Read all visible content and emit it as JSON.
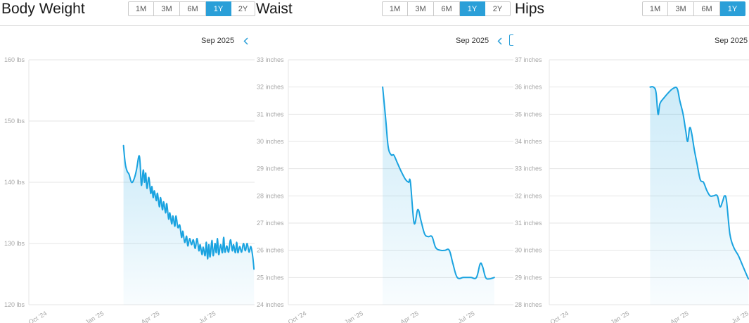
{
  "chart_data": [
    {
      "type": "area",
      "title": "Body Weight",
      "range_options": [
        "1M",
        "3M",
        "6M",
        "1Y",
        "2Y"
      ],
      "selected_range": "1Y",
      "month_label": "Sep 2025",
      "y_ticks": [
        {
          "value": 120,
          "label": "120 lbs"
        },
        {
          "value": 130,
          "label": "130 lbs"
        },
        {
          "value": 140,
          "label": "140 lbs"
        },
        {
          "value": 150,
          "label": "150 lbs"
        },
        {
          "value": 160,
          "label": "160 lbs"
        }
      ],
      "ylim": [
        120,
        160
      ],
      "x_ticks": [
        {
          "date": "2024-10-01",
          "label": "Oct '24"
        },
        {
          "date": "2025-01-01",
          "label": "Jan '25"
        },
        {
          "date": "2025-04-01",
          "label": "Apr '25"
        },
        {
          "date": "2025-07-01",
          "label": "Jul '25"
        }
      ],
      "xlim": [
        "2024-09-01",
        "2025-09-01"
      ],
      "series": [
        {
          "points": [
            [
              "2025-02-01",
              146.0
            ],
            [
              "2025-02-04",
              143.0
            ],
            [
              "2025-02-07",
              141.8
            ],
            [
              "2025-02-10",
              141.3
            ],
            [
              "2025-02-14",
              140.0
            ],
            [
              "2025-02-18",
              140.5
            ],
            [
              "2025-02-22",
              142.0
            ],
            [
              "2025-02-26",
              144.3
            ],
            [
              "2025-02-28",
              143.0
            ],
            [
              "2025-03-02",
              139.5
            ],
            [
              "2025-03-05",
              142.0
            ],
            [
              "2025-03-07",
              140.0
            ],
            [
              "2025-03-09",
              141.5
            ],
            [
              "2025-03-11",
              139.0
            ],
            [
              "2025-03-14",
              140.8
            ],
            [
              "2025-03-17",
              138.2
            ],
            [
              "2025-03-19",
              139.3
            ],
            [
              "2025-03-21",
              137.5
            ],
            [
              "2025-03-23",
              138.6
            ],
            [
              "2025-03-26",
              137.0
            ],
            [
              "2025-03-28",
              138.2
            ],
            [
              "2025-03-31",
              136.0
            ],
            [
              "2025-04-02",
              137.5
            ],
            [
              "2025-04-05",
              135.5
            ],
            [
              "2025-04-07",
              136.8
            ],
            [
              "2025-04-10",
              135.0
            ],
            [
              "2025-04-12",
              136.5
            ],
            [
              "2025-04-15",
              134.0
            ],
            [
              "2025-04-17",
              135.0
            ],
            [
              "2025-04-20",
              133.2
            ],
            [
              "2025-04-22",
              134.5
            ],
            [
              "2025-04-25",
              132.8
            ],
            [
              "2025-04-27",
              134.5
            ],
            [
              "2025-04-30",
              132.6
            ],
            [
              "2025-05-03",
              133.0
            ],
            [
              "2025-05-06",
              131.0
            ],
            [
              "2025-05-08",
              132.0
            ],
            [
              "2025-05-11",
              130.2
            ],
            [
              "2025-05-14",
              131.2
            ],
            [
              "2025-05-16",
              129.6
            ],
            [
              "2025-05-19",
              130.8
            ],
            [
              "2025-05-22",
              129.8
            ],
            [
              "2025-05-25",
              130.6
            ],
            [
              "2025-05-28",
              129.2
            ],
            [
              "2025-05-31",
              130.8
            ],
            [
              "2025-06-03",
              128.8
            ],
            [
              "2025-06-05",
              129.8
            ],
            [
              "2025-06-08",
              128.2
            ],
            [
              "2025-06-10",
              129.4
            ],
            [
              "2025-06-13",
              128.0
            ],
            [
              "2025-06-15",
              130.2
            ],
            [
              "2025-06-17",
              127.5
            ],
            [
              "2025-06-19",
              129.8
            ],
            [
              "2025-06-21",
              127.8
            ],
            [
              "2025-06-24",
              130.5
            ],
            [
              "2025-06-26",
              128.0
            ],
            [
              "2025-06-29",
              130.0
            ],
            [
              "2025-07-01",
              128.5
            ],
            [
              "2025-07-03",
              130.8
            ],
            [
              "2025-07-05",
              128.2
            ],
            [
              "2025-07-08",
              129.8
            ],
            [
              "2025-07-11",
              128.5
            ],
            [
              "2025-07-13",
              131.0
            ],
            [
              "2025-07-15",
              128.6
            ],
            [
              "2025-07-18",
              129.6
            ],
            [
              "2025-07-21",
              128.6
            ],
            [
              "2025-07-24",
              130.6
            ],
            [
              "2025-07-27",
              128.8
            ],
            [
              "2025-07-29",
              129.8
            ],
            [
              "2025-08-01",
              128.5
            ],
            [
              "2025-08-03",
              130.2
            ],
            [
              "2025-08-05",
              128.5
            ],
            [
              "2025-08-08",
              129.5
            ],
            [
              "2025-08-11",
              128.6
            ],
            [
              "2025-08-14",
              130.0
            ],
            [
              "2025-08-17",
              128.8
            ],
            [
              "2025-08-20",
              130.0
            ],
            [
              "2025-08-23",
              128.6
            ],
            [
              "2025-08-26",
              129.5
            ],
            [
              "2025-08-29",
              127.8
            ],
            [
              "2025-08-31",
              125.8
            ]
          ]
        }
      ]
    },
    {
      "type": "area",
      "title": "Waist",
      "range_options": [
        "1M",
        "3M",
        "6M",
        "1Y",
        "2Y"
      ],
      "selected_range": "1Y",
      "month_label": "Sep 2025",
      "y_ticks": [
        {
          "value": 24,
          "label": "24 inches"
        },
        {
          "value": 25,
          "label": "25 inches"
        },
        {
          "value": 26,
          "label": "26 inches"
        },
        {
          "value": 27,
          "label": "27 inches"
        },
        {
          "value": 28,
          "label": "28 inches"
        },
        {
          "value": 29,
          "label": "29 inches"
        },
        {
          "value": 30,
          "label": "30 inches"
        },
        {
          "value": 31,
          "label": "31 inches"
        },
        {
          "value": 32,
          "label": "32 inches"
        },
        {
          "value": 33,
          "label": "33 inches"
        }
      ],
      "ylim": [
        24,
        33
      ],
      "x_ticks": [
        {
          "date": "2024-10-01",
          "label": "Oct '24"
        },
        {
          "date": "2025-01-01",
          "label": "Jan '25"
        },
        {
          "date": "2025-04-01",
          "label": "Apr '25"
        },
        {
          "date": "2025-07-01",
          "label": "Jul '25"
        }
      ],
      "xlim": [
        "2024-09-01",
        "2025-09-01"
      ],
      "series": [
        {
          "points": [
            [
              "2025-02-01",
              32.0
            ],
            [
              "2025-02-06",
              30.8
            ],
            [
              "2025-02-10",
              29.8
            ],
            [
              "2025-02-15",
              29.5
            ],
            [
              "2025-02-19",
              29.5
            ],
            [
              "2025-02-25",
              29.2
            ],
            [
              "2025-03-03",
              28.9
            ],
            [
              "2025-03-10",
              28.6
            ],
            [
              "2025-03-15",
              28.5
            ],
            [
              "2025-03-18",
              28.5
            ],
            [
              "2025-03-24",
              27.0
            ],
            [
              "2025-03-30",
              27.5
            ],
            [
              "2025-04-04",
              27.1
            ],
            [
              "2025-04-10",
              26.6
            ],
            [
              "2025-04-16",
              26.5
            ],
            [
              "2025-04-22",
              26.5
            ],
            [
              "2025-04-28",
              26.1
            ],
            [
              "2025-05-06",
              26.0
            ],
            [
              "2025-05-13",
              26.0
            ],
            [
              "2025-05-20",
              26.0
            ],
            [
              "2025-05-26",
              25.5
            ],
            [
              "2025-06-02",
              25.0
            ],
            [
              "2025-06-12",
              25.0
            ],
            [
              "2025-06-24",
              25.0
            ],
            [
              "2025-07-03",
              25.0
            ],
            [
              "2025-07-09",
              25.5
            ],
            [
              "2025-07-13",
              25.4
            ],
            [
              "2025-07-18",
              25.0
            ],
            [
              "2025-07-24",
              24.95
            ],
            [
              "2025-08-01",
              25.0
            ]
          ]
        }
      ]
    },
    {
      "type": "area",
      "title": "Hips",
      "range_options": [
        "1M",
        "3M",
        "6M",
        "1Y"
      ],
      "selected_range": "1Y",
      "month_label": "Sep 2025",
      "y_ticks": [
        {
          "value": 28,
          "label": "28 inches"
        },
        {
          "value": 29,
          "label": "29 inches"
        },
        {
          "value": 30,
          "label": "30 inches"
        },
        {
          "value": 31,
          "label": "31 inches"
        },
        {
          "value": 32,
          "label": "32 inches"
        },
        {
          "value": 33,
          "label": "33 inches"
        },
        {
          "value": 34,
          "label": "34 inches"
        },
        {
          "value": 35,
          "label": "35 inches"
        },
        {
          "value": 36,
          "label": "36 inches"
        },
        {
          "value": 37,
          "label": "37 inches"
        }
      ],
      "ylim": [
        28,
        37
      ],
      "x_ticks": [
        {
          "date": "2024-10-01",
          "label": "Oct '24"
        },
        {
          "date": "2025-01-01",
          "label": "Jan '25"
        },
        {
          "date": "2025-04-01",
          "label": "Apr '25"
        },
        {
          "date": "2025-07-01",
          "label": "Jul '25"
        }
      ],
      "xlim": [
        "2024-09-01",
        "2025-07-01"
      ],
      "series": [
        {
          "points": [
            [
              "2025-02-01",
              36.0
            ],
            [
              "2025-02-06",
              36.0
            ],
            [
              "2025-02-10",
              35.8
            ],
            [
              "2025-02-13",
              35.0
            ],
            [
              "2025-02-16",
              35.4
            ],
            [
              "2025-02-22",
              35.6
            ],
            [
              "2025-03-01",
              35.8
            ],
            [
              "2025-03-08",
              35.95
            ],
            [
              "2025-03-14",
              35.95
            ],
            [
              "2025-03-18",
              35.5
            ],
            [
              "2025-03-23",
              35.0
            ],
            [
              "2025-03-27",
              34.4
            ],
            [
              "2025-03-30",
              34.0
            ],
            [
              "2025-04-02",
              34.5
            ],
            [
              "2025-04-05",
              34.3
            ],
            [
              "2025-04-09",
              33.7
            ],
            [
              "2025-04-13",
              33.2
            ],
            [
              "2025-04-18",
              32.6
            ],
            [
              "2025-04-23",
              32.5
            ],
            [
              "2025-04-28",
              32.2
            ],
            [
              "2025-05-03",
              32.0
            ],
            [
              "2025-05-08",
              32.0
            ],
            [
              "2025-05-14",
              32.0
            ],
            [
              "2025-05-18",
              31.6
            ],
            [
              "2025-05-22",
              31.8
            ],
            [
              "2025-05-25",
              32.0
            ],
            [
              "2025-05-28",
              31.8
            ],
            [
              "2025-06-02",
              30.6
            ],
            [
              "2025-06-08",
              30.1
            ],
            [
              "2025-06-15",
              29.8
            ],
            [
              "2025-06-22",
              29.4
            ],
            [
              "2025-06-30",
              28.95
            ]
          ]
        }
      ]
    }
  ],
  "colors": {
    "line": "#1aa3e0",
    "accent": "#2a9fd8",
    "grid": "#e6e6e6",
    "axis_text": "#a7a7a7",
    "title": "#1a1a1a"
  },
  "icons": {
    "prev": "chevron-left-icon",
    "calendar": "calendar-icon"
  }
}
